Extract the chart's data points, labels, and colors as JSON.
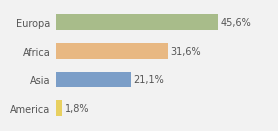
{
  "categories": [
    "Europa",
    "Africa",
    "Asia",
    "America"
  ],
  "values": [
    45.6,
    31.6,
    21.1,
    1.8
  ],
  "labels": [
    "45,6%",
    "31,6%",
    "21,1%",
    "1,8%"
  ],
  "bar_colors": [
    "#a8bc8a",
    "#e8b882",
    "#7b9ec8",
    "#e8d060"
  ],
  "background_color": "#f2f2f2",
  "xlim": [
    0,
    60
  ],
  "label_fontsize": 7.0,
  "tick_fontsize": 7.0,
  "bar_height": 0.55
}
